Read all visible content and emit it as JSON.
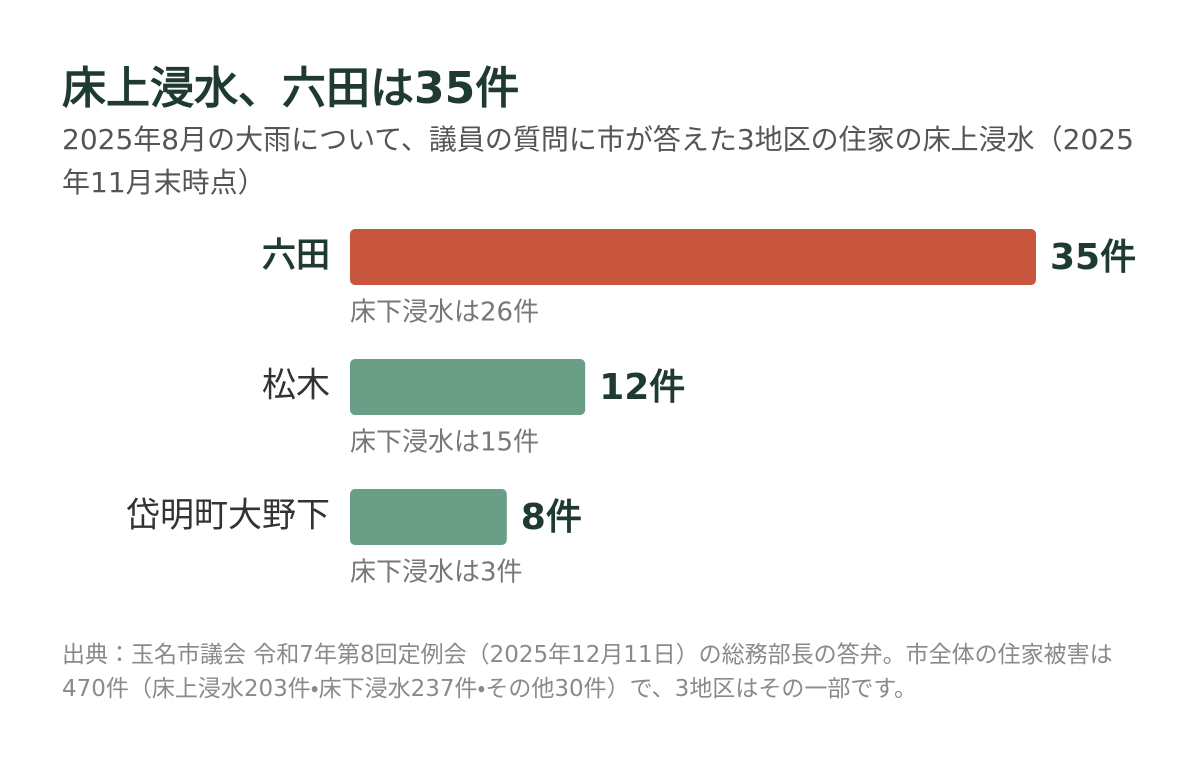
{
  "chart_data": {
    "type": "bar",
    "orientation": "horizontal",
    "title": "床上浸水、六田は35件",
    "subtitle": "2025年8月の大雨について、議員の質問に市が答えた3地区の住家の床上浸水（2025年11月末時点）",
    "categories": [
      "六田",
      "松木",
      "岱明町大野下"
    ],
    "values": [
      35,
      12,
      8
    ],
    "value_labels": [
      "35件",
      "12件",
      "8件"
    ],
    "notes": [
      "床下浸水は26件",
      "床下浸水は15件",
      "床下浸水は3件"
    ],
    "colors": [
      "#c8553d",
      "#6b9e86",
      "#6b9e86"
    ],
    "highlight": 0,
    "source": "出典：玉名市議会 令和7年第8回定例会（2025年12月11日）の総務部長の答弁。市全体の住家被害は470件（床上浸水203件・床下浸水237件・その他30件）で、3地区はその一部です。"
  }
}
